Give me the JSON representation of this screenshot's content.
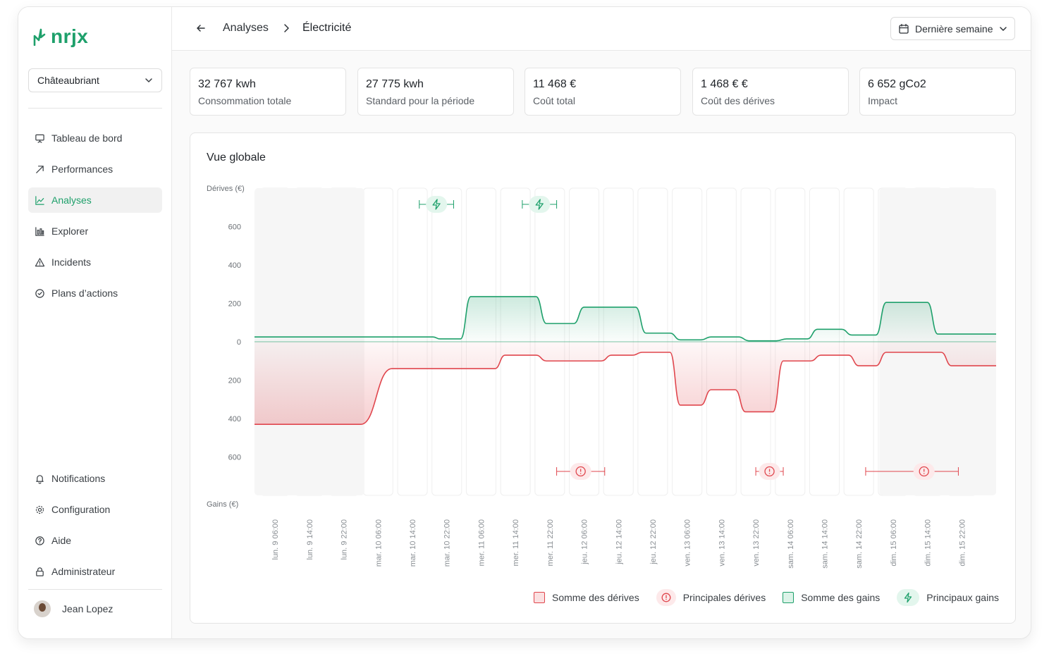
{
  "app": {
    "name": "nrjx"
  },
  "sidebar": {
    "site": "Châteaubriant",
    "items": [
      {
        "label": "Tableau de bord",
        "icon": "presentation-icon"
      },
      {
        "label": "Performances",
        "icon": "trend-arrow-icon"
      },
      {
        "label": "Analyses",
        "icon": "line-chart-icon",
        "active": true
      },
      {
        "label": "Explorer",
        "icon": "bar-chart-icon"
      },
      {
        "label": "Incidents",
        "icon": "warning-icon"
      },
      {
        "label": "Plans d’actions",
        "icon": "check-circle-icon"
      }
    ],
    "bottom_items": [
      {
        "label": "Notifications",
        "icon": "bell-icon"
      },
      {
        "label": "Configuration",
        "icon": "gear-icon"
      },
      {
        "label": "Aide",
        "icon": "help-circle-icon"
      },
      {
        "label": "Administrateur",
        "icon": "lock-icon"
      }
    ],
    "user": {
      "name": "Jean Lopez"
    }
  },
  "header": {
    "breadcrumb": [
      "Analyses",
      "Électricité"
    ],
    "period": "Dernière semaine"
  },
  "kpis": [
    {
      "value": "32 767 kwh",
      "label": "Consommation totale"
    },
    {
      "value": "27 775 kwh",
      "label": "Standard pour la période"
    },
    {
      "value": "11 468  €",
      "label": "Coût total"
    },
    {
      "value": "1 468 € €",
      "label": "Coût des dérives"
    },
    {
      "value": "6 652 gCo2",
      "label": "Impact"
    }
  ],
  "colors": {
    "accent": "#1ea06b",
    "drift": "#e0464d",
    "gain": "#1ea06b"
  },
  "chart": {
    "title": "Vue globale",
    "legend": [
      "Somme des dérives",
      "Principales dérives",
      "Somme des gains",
      "Principaux gains"
    ]
  },
  "chart_data": {
    "type": "area",
    "title": "Vue globale",
    "ylabel_top": "Dérives (€)",
    "ylabel_bottom": "Gains (€)",
    "y_tick_labels": [
      "600",
      "400",
      "200",
      "0",
      "200",
      "400",
      "600"
    ],
    "ylim": [
      -800,
      800
    ],
    "x_tick_labels": [
      "lun. 9 06:00",
      "lun. 9 14:00",
      "lun. 9 22:00",
      "mar. 10 06:00",
      "mar. 10 14:00",
      "mar. 10 22:00",
      "mer. 11 06:00",
      "mer. 11 14:00",
      "mer. 11 22:00",
      "jeu. 12 06:00",
      "jeu. 12 14:00",
      "jeu. 12 22:00",
      "ven. 13 06:00",
      "ven. 13 14:00",
      "ven. 13 22:00",
      "sam. 14 06:00",
      "sam. 14 14:00",
      "sam. 14 22:00",
      "dim. 15 06:00",
      "dim. 15 14:00",
      "dim. 15 22:00"
    ],
    "x_range": [
      0,
      21.6
    ],
    "series": [
      {
        "name": "Somme des gains",
        "color": "#1ea06b",
        "points": [
          [
            0,
            25
          ],
          [
            5.2,
            25
          ],
          [
            5.4,
            15
          ],
          [
            6.0,
            15
          ],
          [
            6.3,
            235
          ],
          [
            8.2,
            235
          ],
          [
            8.5,
            95
          ],
          [
            9.3,
            95
          ],
          [
            9.6,
            180
          ],
          [
            11.1,
            180
          ],
          [
            11.4,
            45
          ],
          [
            12.1,
            45
          ],
          [
            12.4,
            10
          ],
          [
            13.0,
            10
          ],
          [
            13.3,
            25
          ],
          [
            14.1,
            25
          ],
          [
            14.4,
            5
          ],
          [
            15.2,
            5
          ],
          [
            15.5,
            15
          ],
          [
            16.1,
            15
          ],
          [
            16.4,
            65
          ],
          [
            17.1,
            65
          ],
          [
            17.4,
            35
          ],
          [
            18.1,
            35
          ],
          [
            18.4,
            205
          ],
          [
            19.6,
            205
          ],
          [
            19.9,
            40
          ],
          [
            21.6,
            40
          ]
        ]
      },
      {
        "name": "Somme des dérives",
        "color": "#e0464d",
        "points": [
          [
            0,
            -430
          ],
          [
            3.1,
            -430
          ],
          [
            4.0,
            -140
          ],
          [
            7.0,
            -140
          ],
          [
            7.3,
            -70
          ],
          [
            8.2,
            -70
          ],
          [
            8.5,
            -100
          ],
          [
            10.1,
            -100
          ],
          [
            10.4,
            -70
          ],
          [
            11.0,
            -70
          ],
          [
            11.3,
            -55
          ],
          [
            12.1,
            -55
          ],
          [
            12.4,
            -330
          ],
          [
            13.0,
            -330
          ],
          [
            13.3,
            -250
          ],
          [
            14.0,
            -250
          ],
          [
            14.3,
            -365
          ],
          [
            15.1,
            -365
          ],
          [
            15.4,
            -100
          ],
          [
            16.2,
            -100
          ],
          [
            16.5,
            -70
          ],
          [
            17.3,
            -70
          ],
          [
            17.6,
            -125
          ],
          [
            18.1,
            -125
          ],
          [
            18.4,
            -55
          ],
          [
            20.0,
            -55
          ],
          [
            20.3,
            -125
          ],
          [
            21.6,
            -125
          ]
        ]
      }
    ],
    "main_gains": [
      {
        "from": 4.8,
        "to": 5.8,
        "at": 5.3
      },
      {
        "from": 7.8,
        "to": 8.8,
        "at": 8.3
      }
    ],
    "main_drifts": [
      {
        "from": 8.8,
        "to": 10.2,
        "at": 9.5
      },
      {
        "from": 14.6,
        "to": 15.4,
        "at": 15.0
      },
      {
        "from": 17.8,
        "to": 20.5,
        "at": 19.5
      }
    ]
  }
}
